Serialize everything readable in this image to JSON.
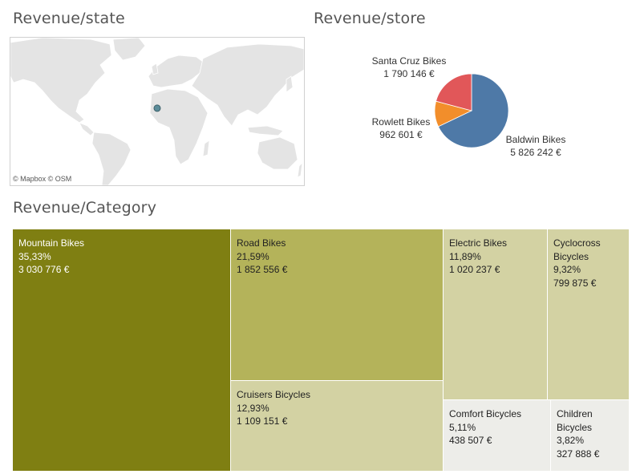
{
  "map": {
    "title": "Revenue/state",
    "attribution": "© Mapbox © OSM"
  },
  "pie": {
    "title": "Revenue/store"
  },
  "treemap": {
    "title": "Revenue/Category"
  },
  "colors": {
    "baldwin": "#4E79A7",
    "santa_cruz": "#E15759",
    "rowlett": "#F28E2B",
    "mountain": "#7F7F12",
    "road": "#B4B35A",
    "light": "#D3D2A3",
    "pale": "#EDEDE9",
    "map_land": "#E4E4E4",
    "map_border": "#FFFFFF",
    "marker": "#5B8C99"
  },
  "chart_data": [
    {
      "type": "map",
      "title": "Revenue/state",
      "points": [
        {
          "lon": 0,
          "lat": 4
        }
      ]
    },
    {
      "type": "pie",
      "title": "Revenue/store",
      "slices": [
        {
          "name": "Baldwin Bikes",
          "value_label": "5 826 242 €",
          "value": 5826242,
          "color": "#4E79A7"
        },
        {
          "name": "Rowlett Bikes",
          "value_label": "962 601 €",
          "value": 962601,
          "color": "#F28E2B"
        },
        {
          "name": "Santa Cruz Bikes",
          "value_label": "1 790 146 €",
          "value": 1790146,
          "color": "#E15759"
        }
      ]
    },
    {
      "type": "treemap",
      "title": "Revenue/Category",
      "items": [
        {
          "name": "Mountain Bikes",
          "share": "35,33%",
          "value_label": "3 030 776 €",
          "value": 3030776
        },
        {
          "name": "Road Bikes",
          "share": "21,59%",
          "value_label": "1 852 556 €",
          "value": 1852556
        },
        {
          "name": "Cruisers Bicycles",
          "share": "12,93%",
          "value_label": "1 109 151 €",
          "value": 1109151
        },
        {
          "name": "Electric Bikes",
          "share": "11,89%",
          "value_label": "1 020 237 €",
          "value": 1020237
        },
        {
          "name_lines": [
            "Cyclocross",
            "Bicycles"
          ],
          "share": "9,32%",
          "value_label": "799 875 €",
          "value": 799875
        },
        {
          "name": "Comfort Bicycles",
          "share": "5,11%",
          "value_label": "438 507 €",
          "value": 438507
        },
        {
          "name_lines": [
            "Children",
            "Bicycles"
          ],
          "share": "3,82%",
          "value_label": "327 888 €",
          "value": 327888
        }
      ]
    }
  ]
}
